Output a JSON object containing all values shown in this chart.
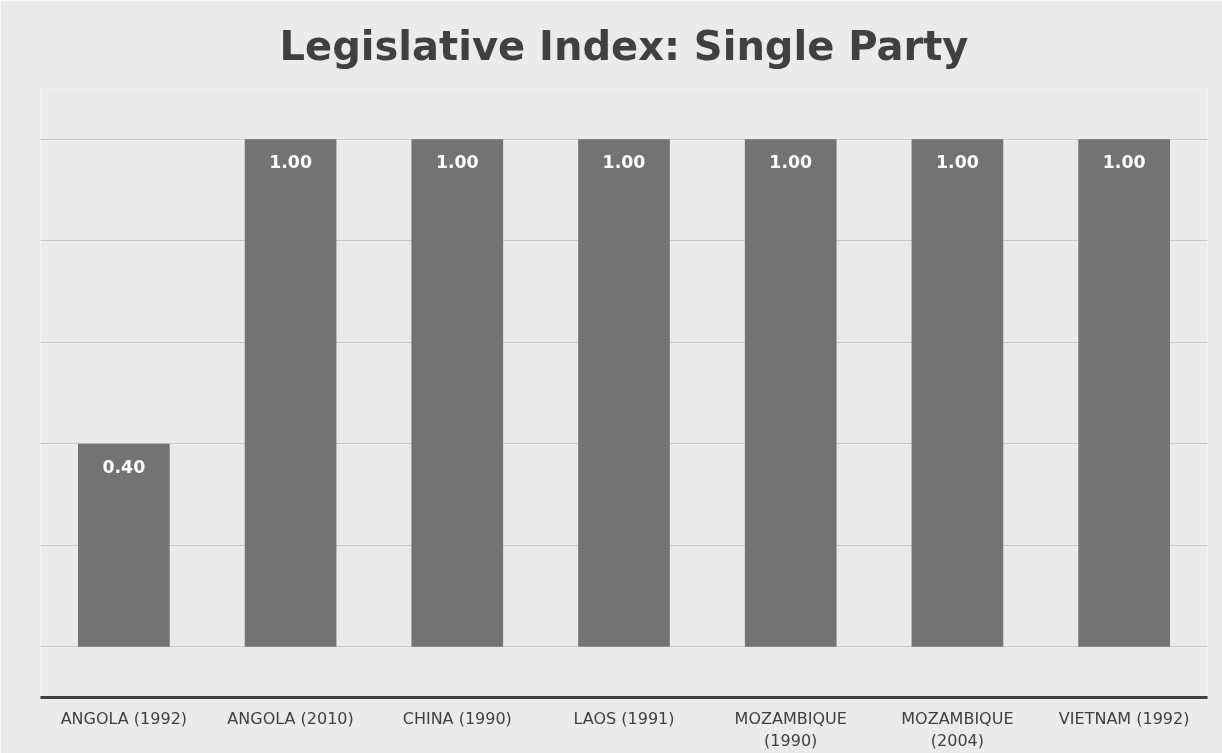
{
  "chart_data": {
    "type": "bar",
    "title": "Legislative Index: Single Party",
    "categories": [
      "ANGOLA (1992)",
      "ANGOLA (2010)",
      "CHINA (1990)",
      "LAOS (1991)",
      "MOZAMBIQUE (1990)",
      "MOZAMBIQUE (2004)",
      "VIETNAM (1992)"
    ],
    "values": [
      0.4,
      1.0,
      1.0,
      1.0,
      1.0,
      1.0,
      1.0
    ],
    "color": "#737373",
    "value_labels": [
      "0.40",
      "1.00",
      "1.00",
      "1.00",
      "1.00",
      "1.00",
      "1.00"
    ],
    "grid": "y",
    "tick_labels": "x"
  }
}
